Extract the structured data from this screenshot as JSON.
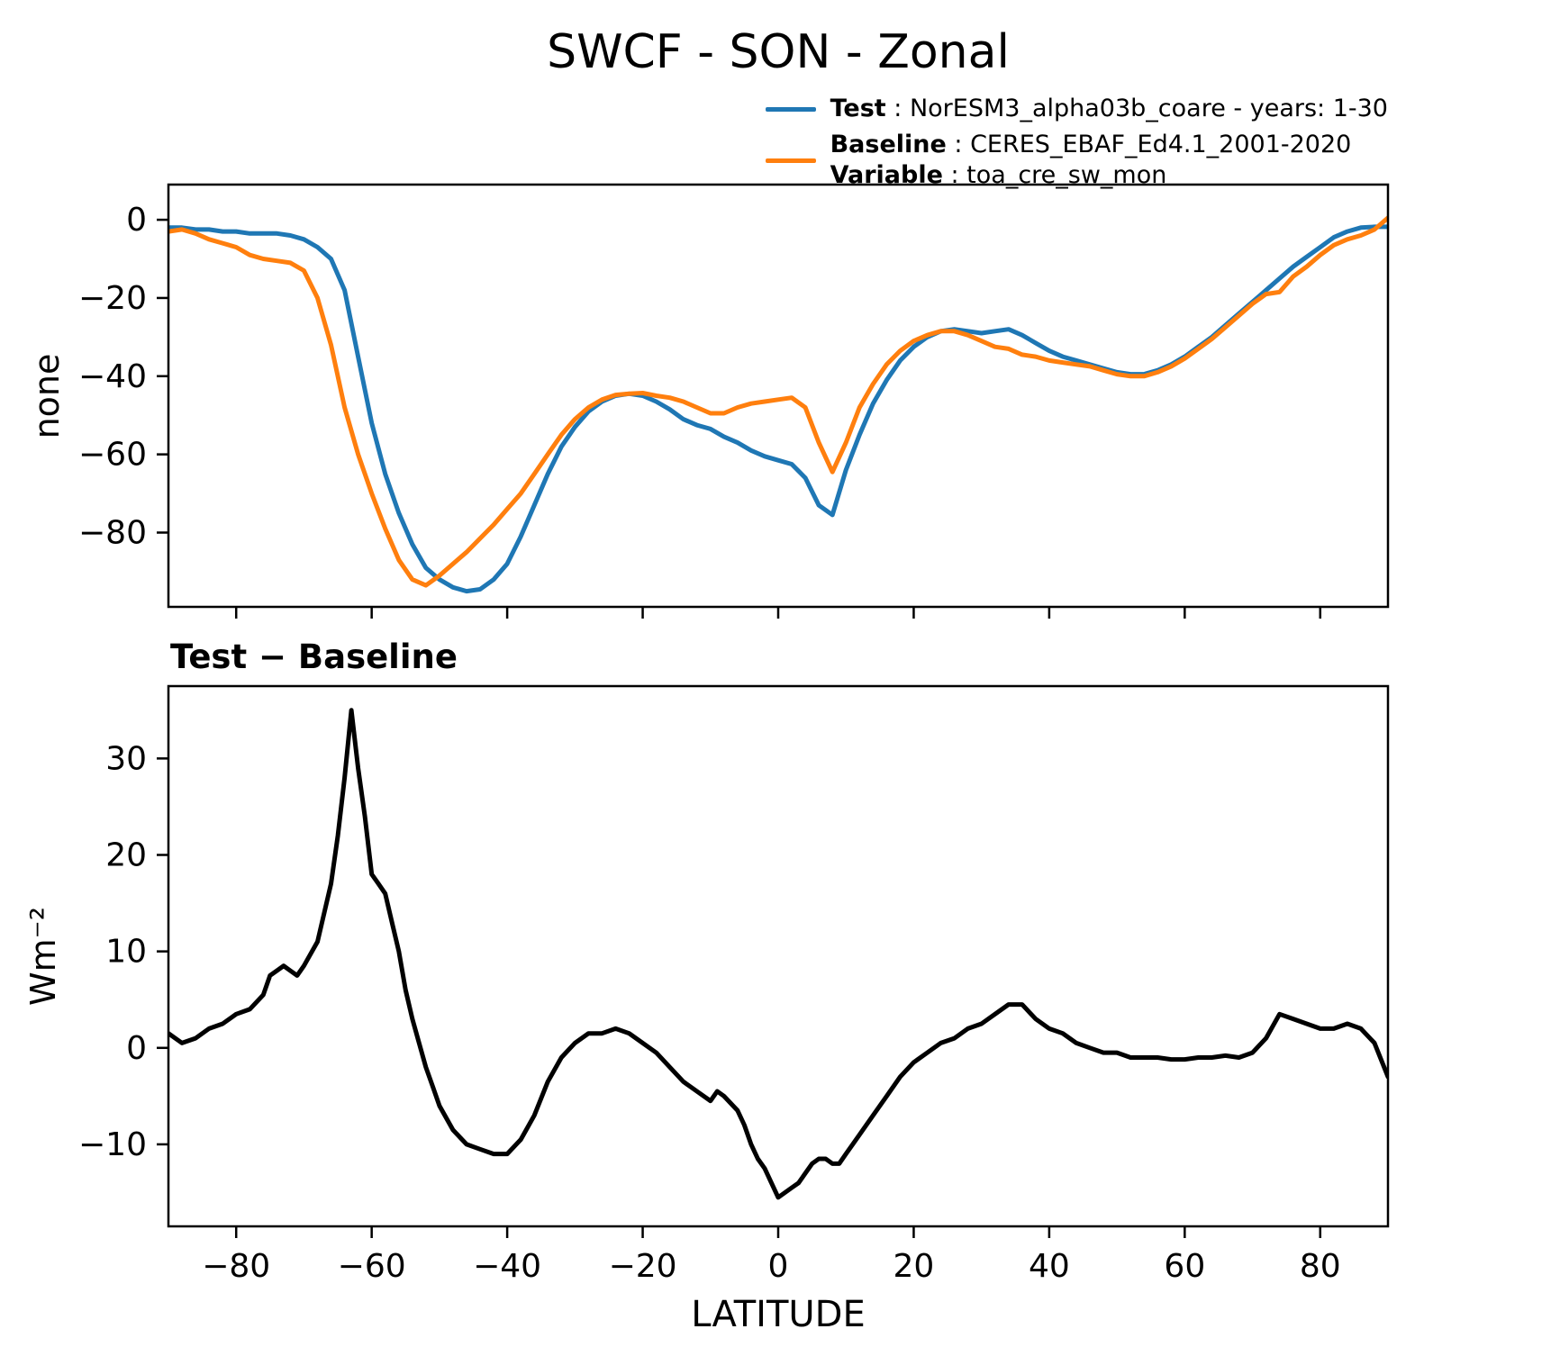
{
  "title": "SWCF - SON - Zonal",
  "legend": {
    "test": {
      "label": "Test",
      "rest": " : NorESM3_alpha03b_coare - years: 1-30",
      "color": "#1f77b4"
    },
    "baseline": {
      "label": "Baseline",
      "rest": " : CERES_EBAF_Ed4.1_2001-2020",
      "color": "#ff7f0e"
    },
    "variable": {
      "label": "Variable",
      "rest": " : toa_cre_sw_mon"
    }
  },
  "colors": {
    "test_line": "#1f77b4",
    "baseline_line": "#ff7f0e",
    "difference_line": "#000000",
    "axes": "#000000",
    "background": "#ffffff"
  },
  "chart_data": [
    {
      "type": "line",
      "title": "SWCF - SON - Zonal",
      "xlabel": "",
      "ylabel": "none",
      "xlim": [
        -90,
        90
      ],
      "ylim": [
        -99,
        9
      ],
      "xticks": [
        -80,
        -60,
        -40,
        -20,
        0,
        20,
        40,
        60,
        80
      ],
      "yticks": [
        0,
        -20,
        -40,
        -60,
        -80
      ],
      "grid": false,
      "legend_position": "outside upper right",
      "series": [
        {
          "name": "Test",
          "label": "NorESM3_alpha03b_coare - years: 1-30",
          "color": "#1f77b4",
          "x": [
            -90,
            -88,
            -86,
            -84,
            -82,
            -80,
            -78,
            -76,
            -74,
            -72,
            -70,
            -68,
            -66,
            -64,
            -62,
            -60,
            -58,
            -56,
            -54,
            -52,
            -50,
            -48,
            -46,
            -44,
            -42,
            -40,
            -38,
            -36,
            -34,
            -32,
            -30,
            -28,
            -26,
            -24,
            -22,
            -20,
            -18,
            -16,
            -14,
            -12,
            -10,
            -8,
            -6,
            -4,
            -2,
            0,
            2,
            4,
            6,
            8,
            10,
            12,
            14,
            16,
            18,
            20,
            22,
            24,
            26,
            28,
            30,
            32,
            34,
            36,
            38,
            40,
            42,
            44,
            46,
            48,
            50,
            52,
            54,
            56,
            58,
            60,
            62,
            64,
            66,
            68,
            70,
            72,
            74,
            76,
            78,
            80,
            82,
            84,
            86,
            88,
            90
          ],
          "y": [
            -2,
            -2,
            -2.5,
            -2.5,
            -3,
            -3,
            -3.5,
            -3.5,
            -3.5,
            -4,
            -5,
            -7,
            -10,
            -18,
            -35,
            -52,
            -65,
            -75,
            -83,
            -89,
            -92,
            -94,
            -95,
            -94.5,
            -92,
            -88,
            -81,
            -73,
            -65,
            -58,
            -53,
            -49,
            -46.5,
            -45,
            -44.5,
            -45,
            -46.5,
            -48.5,
            -51,
            -52.5,
            -53.5,
            -55.5,
            -57,
            -59,
            -60.5,
            -61.5,
            -62.5,
            -66,
            -73,
            -75.5,
            -64,
            -55,
            -47,
            -41,
            -36,
            -32.5,
            -30,
            -28.5,
            -28,
            -28.5,
            -29,
            -28.5,
            -28,
            -29.5,
            -31.5,
            -33.5,
            -35,
            -36,
            -37,
            -38,
            -39,
            -39.5,
            -39.5,
            -38.5,
            -37,
            -35,
            -32.5,
            -30,
            -27,
            -24,
            -21,
            -18,
            -15,
            -12,
            -9.5,
            -7,
            -4.5,
            -3,
            -2,
            -1.8,
            -1.8
          ]
        },
        {
          "name": "Baseline",
          "label": "CERES_EBAF_Ed4.1_2001-2020",
          "color": "#ff7f0e",
          "x": [
            -90,
            -88,
            -86,
            -84,
            -82,
            -80,
            -78,
            -76,
            -74,
            -72,
            -70,
            -68,
            -66,
            -64,
            -62,
            -60,
            -58,
            -56,
            -54,
            -52,
            -50,
            -48,
            -46,
            -44,
            -42,
            -40,
            -38,
            -36,
            -34,
            -32,
            -30,
            -28,
            -26,
            -24,
            -22,
            -20,
            -18,
            -16,
            -14,
            -12,
            -10,
            -8,
            -6,
            -4,
            -2,
            0,
            2,
            4,
            6,
            8,
            10,
            12,
            14,
            16,
            18,
            20,
            22,
            24,
            26,
            28,
            30,
            32,
            34,
            36,
            38,
            40,
            42,
            44,
            46,
            48,
            50,
            52,
            54,
            56,
            58,
            60,
            62,
            64,
            66,
            68,
            70,
            72,
            74,
            76,
            78,
            80,
            82,
            84,
            86,
            88,
            90
          ],
          "y": [
            -3,
            -2.5,
            -3.5,
            -5,
            -6,
            -7,
            -9,
            -10,
            -10.5,
            -11,
            -13,
            -20,
            -32,
            -48,
            -60,
            -70,
            -79,
            -87,
            -92,
            -93.5,
            -91,
            -88,
            -85,
            -81.5,
            -78,
            -74,
            -70,
            -65,
            -60,
            -55,
            -51,
            -48,
            -46,
            -44.8,
            -44.5,
            -44.3,
            -45,
            -45.5,
            -46.5,
            -48,
            -49.5,
            -49.5,
            -48,
            -47,
            -46.5,
            -46,
            -45.5,
            -48,
            -57,
            -64.5,
            -57,
            -48,
            -42,
            -37,
            -33.5,
            -31,
            -29.5,
            -28.5,
            -28.5,
            -29.5,
            -31,
            -32.5,
            -33,
            -34.5,
            -35,
            -36,
            -36.5,
            -37,
            -37.5,
            -38.5,
            -39.5,
            -40,
            -40,
            -39,
            -37.5,
            -35.5,
            -33,
            -30.5,
            -27.5,
            -24.5,
            -21.5,
            -19,
            -18.5,
            -14.5,
            -12,
            -9,
            -6.5,
            -5,
            -4,
            -2.5,
            0.5
          ]
        }
      ]
    },
    {
      "type": "line",
      "title": "Test − Baseline",
      "xlabel": "LATITUDE",
      "ylabel": "Wm⁻²",
      "xlim": [
        -90,
        90
      ],
      "ylim": [
        -18.5,
        37.5
      ],
      "xticks": [
        -80,
        -60,
        -40,
        -20,
        0,
        20,
        40,
        60,
        80
      ],
      "yticks": [
        -10,
        0,
        10,
        20,
        30
      ],
      "grid": false,
      "series": [
        {
          "name": "Test minus Baseline",
          "color": "#000000",
          "x": [
            -90,
            -88,
            -86,
            -84,
            -82,
            -80,
            -78,
            -76,
            -75,
            -74,
            -73,
            -72,
            -71,
            -70,
            -68,
            -66,
            -65,
            -64,
            -63,
            -62,
            -61,
            -60,
            -59,
            -58,
            -57,
            -56,
            -55,
            -54,
            -53,
            -52,
            -51,
            -50,
            -48,
            -46,
            -44,
            -42,
            -40,
            -38,
            -36,
            -34,
            -32,
            -30,
            -28,
            -26,
            -24,
            -22,
            -20,
            -18,
            -16,
            -14,
            -12,
            -10,
            -9,
            -8,
            -6,
            -5,
            -4,
            -3,
            -2,
            -1,
            0,
            1,
            2,
            3,
            4,
            5,
            6,
            7,
            8,
            9,
            10,
            12,
            14,
            16,
            18,
            20,
            22,
            24,
            26,
            28,
            30,
            32,
            34,
            36,
            38,
            40,
            42,
            44,
            46,
            48,
            50,
            52,
            54,
            56,
            58,
            60,
            62,
            64,
            66,
            68,
            70,
            72,
            74,
            76,
            78,
            80,
            82,
            84,
            86,
            88,
            90
          ],
          "y": [
            1.5,
            0.5,
            1,
            2,
            2.5,
            3.5,
            4,
            5.5,
            7.5,
            8,
            8.5,
            8,
            7.5,
            8.5,
            11,
            17,
            22,
            28,
            35,
            29,
            24,
            18,
            17,
            16,
            13,
            10,
            6,
            3,
            0.5,
            -2,
            -4,
            -6,
            -8.5,
            -10,
            -10.5,
            -11,
            -11,
            -9.5,
            -7,
            -3.5,
            -1,
            0.5,
            1.5,
            1.5,
            2,
            1.5,
            0.5,
            -0.5,
            -2,
            -3.5,
            -4.5,
            -5.5,
            -4.5,
            -5,
            -6.5,
            -8,
            -10,
            -11.5,
            -12.5,
            -14,
            -15.5,
            -15,
            -14.5,
            -14,
            -13,
            -12,
            -11.5,
            -11.5,
            -12,
            -12,
            -11,
            -9,
            -7,
            -5,
            -3,
            -1.5,
            -0.5,
            0.5,
            1,
            2,
            2.5,
            3.5,
            4.5,
            4.5,
            3,
            2,
            1.5,
            0.5,
            0,
            -0.5,
            -0.5,
            -1,
            -1,
            -1,
            -1.2,
            -1.2,
            -1,
            -1,
            -0.8,
            -1,
            -0.5,
            1,
            3.5,
            3,
            2.5,
            2,
            2,
            2.5,
            2,
            0.5,
            -3
          ]
        }
      ]
    }
  ]
}
